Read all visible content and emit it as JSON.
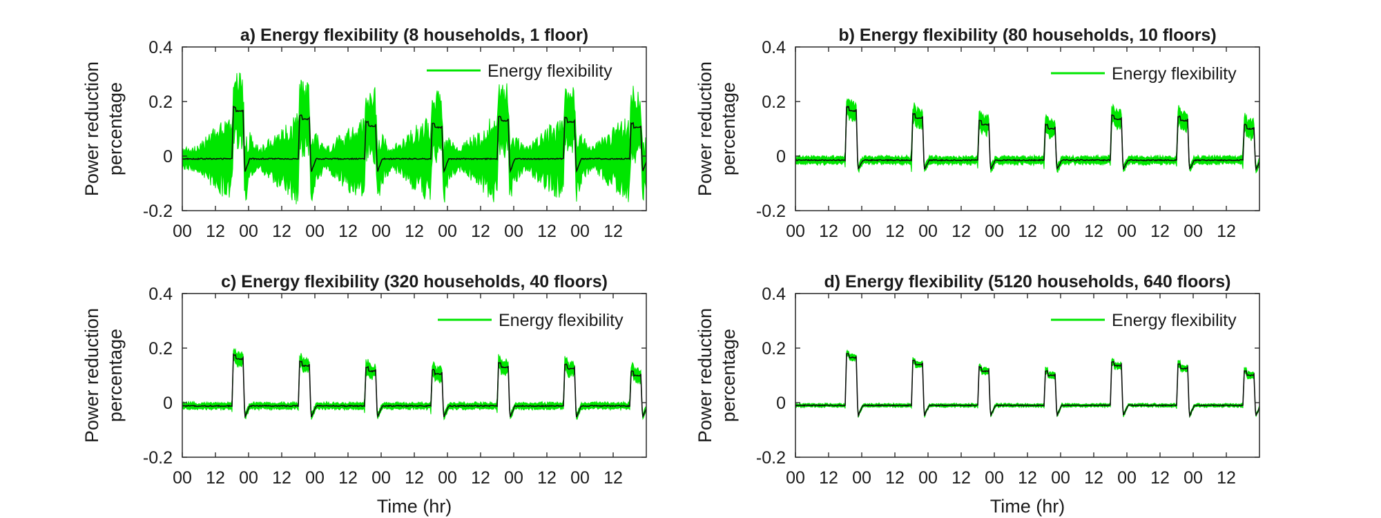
{
  "figure": {
    "colors": {
      "band": "#00e600",
      "mean": "#0d0d0d",
      "legend_line": "#00e600"
    }
  },
  "chart_data": [
    {
      "type": "line",
      "title": "a) Energy flexibility (8 households, 1 floor)",
      "ylabel": [
        "Power reduction",
        "percentage"
      ],
      "xlabel": "",
      "ylim": [
        -0.2,
        0.4
      ],
      "yticks": [
        -0.2,
        0,
        0.2,
        0.4
      ],
      "ytick_labels": [
        "-0.2",
        "0",
        "0.2",
        "0.4"
      ],
      "xlim_hours": [
        0,
        168
      ],
      "xticks_hours": [
        0,
        12,
        24,
        36,
        48,
        60,
        72,
        84,
        96,
        108,
        120,
        132,
        144,
        156
      ],
      "xtick_labels": [
        "00",
        "12",
        "00",
        "12",
        "00",
        "12",
        "00",
        "12",
        "00",
        "12",
        "00",
        "12",
        "00",
        "12"
      ],
      "legend": {
        "label": "Energy flexibility",
        "position": "top-right"
      },
      "series": [
        {
          "name": "Energy flexibility",
          "peak_start_hours": [
            18,
            42,
            66,
            90,
            114,
            138,
            162
          ],
          "peak_mean": [
            0.17,
            0.14,
            0.115,
            0.11,
            0.135,
            0.13,
            0.11
          ],
          "rebound_mean": -0.06,
          "baseline_mean": -0.01,
          "band_halfwidth_baseline": 0.03,
          "band_halfwidth_peak": 0.1,
          "band_pre_peak_extra": 0.09
        }
      ]
    },
    {
      "type": "line",
      "title": "b) Energy flexibility (80 households, 10 floors)",
      "ylabel": [
        "Power reduction",
        "percentage"
      ],
      "xlabel": "",
      "ylim": [
        -0.2,
        0.4
      ],
      "yticks": [
        -0.2,
        0,
        0.2,
        0.4
      ],
      "ytick_labels": [
        "-0.2",
        "0",
        "0.2",
        "0.4"
      ],
      "xlim_hours": [
        0,
        168
      ],
      "xticks_hours": [
        0,
        12,
        24,
        36,
        48,
        60,
        72,
        84,
        96,
        108,
        120,
        132,
        144,
        156
      ],
      "xtick_labels": [
        "00",
        "12",
        "00",
        "12",
        "00",
        "12",
        "00",
        "12",
        "00",
        "12",
        "00",
        "12",
        "00",
        "12"
      ],
      "legend": {
        "label": "Energy flexibility",
        "position": "top-right"
      },
      "series": [
        {
          "name": "Energy flexibility",
          "peak_start_hours": [
            18,
            42,
            66,
            90,
            114,
            138,
            162
          ],
          "peak_mean": [
            0.17,
            0.145,
            0.12,
            0.105,
            0.14,
            0.135,
            0.105
          ],
          "rebound_mean": -0.05,
          "baseline_mean": -0.015,
          "band_halfwidth_baseline": 0.012,
          "band_halfwidth_peak": 0.03,
          "band_pre_peak_extra": 0.0
        }
      ]
    },
    {
      "type": "line",
      "title": "c) Energy flexibility (320 households, 40 floors)",
      "ylabel": [
        "Power reduction",
        "percentage"
      ],
      "xlabel": "Time (hr)",
      "ylim": [
        -0.2,
        0.4
      ],
      "yticks": [
        -0.2,
        0,
        0.2,
        0.4
      ],
      "ytick_labels": [
        "-0.2",
        "0",
        "0.2",
        "0.4"
      ],
      "xlim_hours": [
        0,
        168
      ],
      "xticks_hours": [
        0,
        12,
        24,
        36,
        48,
        60,
        72,
        84,
        96,
        108,
        120,
        132,
        144,
        156
      ],
      "xtick_labels": [
        "00",
        "12",
        "00",
        "12",
        "00",
        "12",
        "00",
        "12",
        "00",
        "12",
        "00",
        "12",
        "00",
        "12"
      ],
      "legend": {
        "label": "Energy flexibility",
        "position": "top-right"
      },
      "series": [
        {
          "name": "Energy flexibility",
          "peak_start_hours": [
            18,
            42,
            66,
            90,
            114,
            138,
            162
          ],
          "peak_mean": [
            0.165,
            0.14,
            0.12,
            0.11,
            0.135,
            0.13,
            0.105
          ],
          "rebound_mean": -0.055,
          "baseline_mean": -0.012,
          "band_halfwidth_baseline": 0.01,
          "band_halfwidth_peak": 0.022,
          "band_pre_peak_extra": 0.0
        }
      ]
    },
    {
      "type": "line",
      "title": "d) Energy flexibility (5120 households, 640 floors)",
      "ylabel": [
        "Power reduction",
        "percentage"
      ],
      "xlabel": "Time (hr)",
      "ylim": [
        -0.2,
        0.4
      ],
      "yticks": [
        -0.2,
        0,
        0.2,
        0.4
      ],
      "ytick_labels": [
        "-0.2",
        "0",
        "0.2",
        "0.4"
      ],
      "xlim_hours": [
        0,
        168
      ],
      "xticks_hours": [
        0,
        12,
        24,
        36,
        48,
        60,
        72,
        84,
        96,
        108,
        120,
        132,
        144,
        156
      ],
      "xtick_labels": [
        "00",
        "12",
        "00",
        "12",
        "00",
        "12",
        "00",
        "12",
        "00",
        "12",
        "00",
        "12",
        "00",
        "12"
      ],
      "legend": {
        "label": "Energy flexibility",
        "position": "top-right"
      },
      "series": [
        {
          "name": "Energy flexibility",
          "peak_start_hours": [
            18,
            42,
            66,
            90,
            114,
            138,
            162
          ],
          "peak_mean": [
            0.17,
            0.145,
            0.12,
            0.105,
            0.14,
            0.13,
            0.105
          ],
          "rebound_mean": -0.05,
          "baseline_mean": -0.01,
          "band_halfwidth_baseline": 0.005,
          "band_halfwidth_peak": 0.01,
          "band_pre_peak_extra": 0.0
        }
      ]
    }
  ]
}
